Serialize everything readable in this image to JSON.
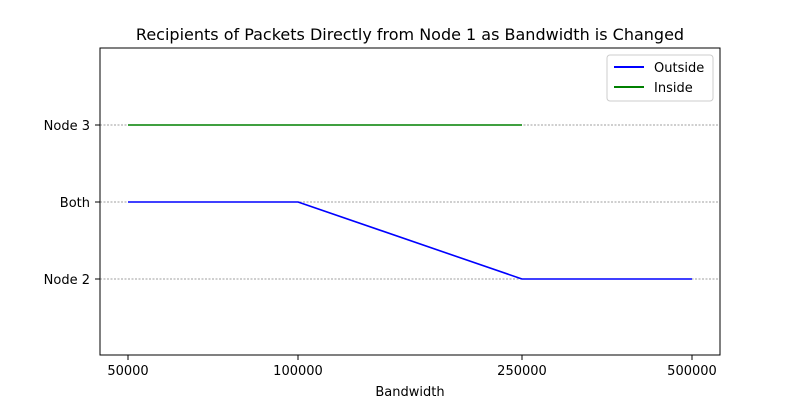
{
  "chart_data": {
    "type": "line",
    "title": "Recipients of Packets Directly from Node 1 as Bandwidth is Changed",
    "xlabel": "Bandwidth",
    "ylabel": "",
    "categories": [
      "50000",
      "100000",
      "250000",
      "500000"
    ],
    "y_categories": [
      "Node 2",
      "Both",
      "Node 3"
    ],
    "series": [
      {
        "name": "Outside",
        "color": "#0000ff",
        "values": [
          "Both",
          "Both",
          "Node 2",
          "Node 2"
        ]
      },
      {
        "name": "Inside",
        "color": "#008000",
        "values": [
          "Node 3",
          "Node 3",
          "Node 3",
          null
        ]
      }
    ],
    "grid": "horizontal dashed",
    "legend": "top-right"
  }
}
